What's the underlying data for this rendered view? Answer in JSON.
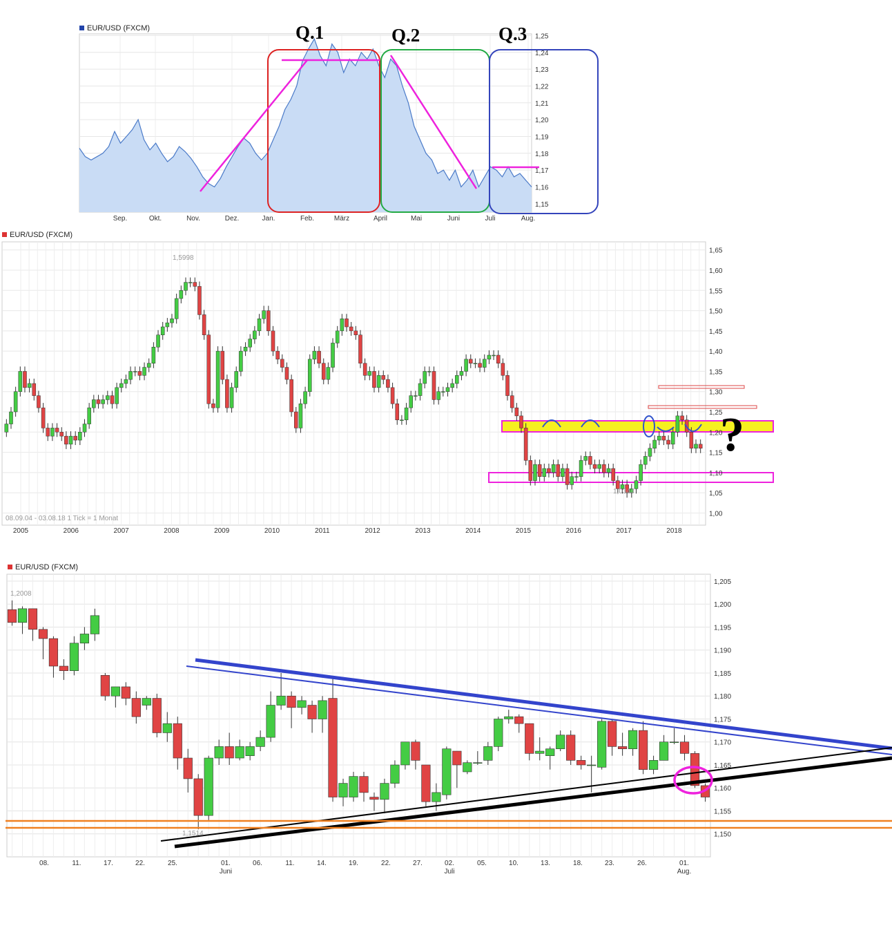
{
  "charts": {
    "top": {
      "legend": "EUR/USD (FXCM)",
      "legend_color": "#2244aa"
    },
    "middle": {
      "legend": "EUR/USD (FXCM)",
      "legend_color": "#dd3333",
      "footer": "08.09.04 - 03.08.18   1 Tick = 1 Monat",
      "high_label": "1,5998",
      "low_label": "1,0344"
    },
    "bottom": {
      "legend": "EUR/USD (FXCM)",
      "legend_color": "#dd3333",
      "high_label": "1,2008",
      "low_label": "1,1514"
    }
  },
  "annotations": {
    "q1": "Q.1",
    "q2": "Q.2",
    "q3": "Q.3",
    "question": "?"
  },
  "colors": {
    "up": "#44cc44",
    "down": "#e04444",
    "area_line": "#4a7ac8",
    "area_fill": "#c9dcf5",
    "magenta": "#ee22dd",
    "q1_box": "#dd2222",
    "q2_box": "#22aa44",
    "q3_box": "#3344bb",
    "support_yellow": "#f6f020",
    "trend_blue": "#3344cc",
    "trend_black": "#000000",
    "orange": "#f08020"
  },
  "chart_data": [
    {
      "type": "area",
      "title": "EUR/USD (FXCM)",
      "x_ticks": [
        "Sep.",
        "Okt.",
        "Nov.",
        "Dez.",
        "Jan.",
        "Feb.",
        "März",
        "April",
        "Mai",
        "Juni",
        "Juli",
        "Aug."
      ],
      "y_ticks": [
        "1,15",
        "1,16",
        "1,17",
        "1,18",
        "1,19",
        "1,20",
        "1,21",
        "1,22",
        "1,23",
        "1,24",
        "1,25"
      ],
      "ylim": [
        1.145,
        1.251
      ],
      "series": [
        {
          "values": [
            1.183,
            1.178,
            1.176,
            1.178,
            1.18,
            1.184,
            1.193,
            1.186,
            1.19,
            1.194,
            1.2,
            1.188,
            1.182,
            1.186,
            1.18,
            1.175,
            1.178,
            1.184,
            1.181,
            1.177,
            1.172,
            1.166,
            1.162,
            1.16,
            1.165,
            1.172,
            1.178,
            1.184,
            1.189,
            1.186,
            1.18,
            1.176,
            1.18,
            1.188,
            1.196,
            1.206,
            1.212,
            1.22,
            1.235,
            1.242,
            1.248,
            1.238,
            1.232,
            1.245,
            1.24,
            1.228,
            1.236,
            1.232,
            1.24,
            1.236,
            1.242,
            1.232,
            1.225,
            1.236,
            1.232,
            1.22,
            1.21,
            1.196,
            1.188,
            1.18,
            1.176,
            1.168,
            1.17,
            1.164,
            1.17,
            1.16,
            1.164,
            1.17,
            1.16,
            1.166,
            1.172,
            1.17,
            1.166,
            1.172,
            1.166,
            1.168,
            1.164,
            1.16
          ]
        }
      ]
    },
    {
      "type": "candlestick",
      "title": "EUR/USD (FXCM)",
      "x_ticks": [
        "2005",
        "2006",
        "2007",
        "2008",
        "2009",
        "2010",
        "2011",
        "2012",
        "2013",
        "2014",
        "2015",
        "2016",
        "2017",
        "2018"
      ],
      "y_ticks": [
        "1,00",
        "1,05",
        "1,10",
        "1,15",
        "1,20",
        "1,25",
        "1,30",
        "1,35",
        "1,40",
        "1,45",
        "1,50",
        "1,55",
        "1,60",
        "1,65"
      ],
      "ylim": [
        0.97,
        1.67
      ],
      "period": "1 Tick = 1 Monat",
      "annotated_high": 1.5998,
      "annotated_low": 1.0344,
      "close": [
        1.22,
        1.25,
        1.3,
        1.35,
        1.31,
        1.32,
        1.29,
        1.26,
        1.21,
        1.19,
        1.21,
        1.2,
        1.19,
        1.17,
        1.19,
        1.18,
        1.2,
        1.22,
        1.26,
        1.28,
        1.27,
        1.28,
        1.29,
        1.27,
        1.31,
        1.32,
        1.33,
        1.35,
        1.35,
        1.34,
        1.36,
        1.37,
        1.41,
        1.44,
        1.46,
        1.47,
        1.48,
        1.53,
        1.55,
        1.57,
        1.57,
        1.56,
        1.49,
        1.44,
        1.27,
        1.26,
        1.4,
        1.33,
        1.26,
        1.31,
        1.35,
        1.4,
        1.41,
        1.43,
        1.45,
        1.48,
        1.5,
        1.45,
        1.4,
        1.38,
        1.36,
        1.33,
        1.25,
        1.21,
        1.27,
        1.3,
        1.38,
        1.4,
        1.37,
        1.33,
        1.36,
        1.42,
        1.45,
        1.48,
        1.46,
        1.45,
        1.44,
        1.37,
        1.34,
        1.35,
        1.31,
        1.34,
        1.33,
        1.31,
        1.27,
        1.23,
        1.23,
        1.26,
        1.29,
        1.29,
        1.32,
        1.35,
        1.35,
        1.28,
        1.3,
        1.3,
        1.31,
        1.32,
        1.34,
        1.35,
        1.38,
        1.37,
        1.37,
        1.36,
        1.38,
        1.39,
        1.39,
        1.37,
        1.34,
        1.29,
        1.26,
        1.24,
        1.21,
        1.13,
        1.08,
        1.12,
        1.09,
        1.11,
        1.1,
        1.12,
        1.09,
        1.11,
        1.07,
        1.09,
        1.09,
        1.13,
        1.14,
        1.12,
        1.11,
        1.12,
        1.1,
        1.11,
        1.08,
        1.06,
        1.07,
        1.05,
        1.06,
        1.08,
        1.12,
        1.14,
        1.16,
        1.18,
        1.19,
        1.18,
        1.17,
        1.2,
        1.24,
        1.23,
        1.2,
        1.16,
        1.17,
        1.16
      ]
    },
    {
      "type": "candlestick",
      "title": "EUR/USD (FXCM)",
      "x_ticks": [
        "08.",
        "11.",
        "17.",
        "22.",
        "25.",
        "01.",
        "06.",
        "11.",
        "14.",
        "19.",
        "22.",
        "27.",
        "02.",
        "05.",
        "10.",
        "13.",
        "18.",
        "23.",
        "26.",
        "01."
      ],
      "x_month_labels": [
        "Juni",
        "Juli",
        "Aug."
      ],
      "y_ticks": [
        "1,150",
        "1,155",
        "1,160",
        "1,165",
        "1,170",
        "1,175",
        "1,180",
        "1,185",
        "1,190",
        "1,195",
        "1,200",
        "1,205"
      ],
      "ylim": [
        1.145,
        1.2065
      ],
      "annotated_high": 1.2008,
      "annotated_low": 1.1514,
      "candles": [
        [
          1.1988,
          1.2008,
          1.1953,
          1.196
        ],
        [
          1.196,
          1.1995,
          1.1935,
          1.199
        ],
        [
          1.199,
          1.199,
          1.192,
          1.1945
        ],
        [
          1.1945,
          1.195,
          1.188,
          1.1925
        ],
        [
          1.1925,
          1.193,
          1.184,
          1.1865
        ],
        [
          1.1865,
          1.188,
          1.1835,
          1.1855
        ],
        [
          1.1855,
          1.193,
          1.1845,
          1.1915
        ],
        [
          1.1915,
          1.195,
          1.19,
          1.1935
        ],
        [
          1.1935,
          1.199,
          1.192,
          1.1975
        ],
        [
          1.1845,
          1.185,
          1.179,
          1.18
        ],
        [
          1.18,
          1.1815,
          1.1775,
          1.182
        ],
        [
          1.182,
          1.183,
          1.178,
          1.1795
        ],
        [
          1.1795,
          1.181,
          1.174,
          1.1755
        ],
        [
          1.178,
          1.18,
          1.177,
          1.1795
        ],
        [
          1.1795,
          1.1805,
          1.171,
          1.172
        ],
        [
          1.172,
          1.1765,
          1.17,
          1.174
        ],
        [
          1.174,
          1.1755,
          1.164,
          1.1665
        ],
        [
          1.1665,
          1.1685,
          1.159,
          1.162
        ],
        [
          1.162,
          1.163,
          1.151,
          1.154
        ],
        [
          1.154,
          1.167,
          1.153,
          1.1665
        ],
        [
          1.1665,
          1.1705,
          1.165,
          1.169
        ],
        [
          1.169,
          1.172,
          1.165,
          1.1665
        ],
        [
          1.1665,
          1.1705,
          1.166,
          1.169
        ],
        [
          1.167,
          1.17,
          1.166,
          1.169
        ],
        [
          1.169,
          1.1725,
          1.168,
          1.171
        ],
        [
          1.171,
          1.181,
          1.17,
          1.178
        ],
        [
          1.178,
          1.185,
          1.177,
          1.18
        ],
        [
          1.18,
          1.181,
          1.173,
          1.1775
        ],
        [
          1.1775,
          1.18,
          1.176,
          1.179
        ],
        [
          1.178,
          1.179,
          1.172,
          1.175
        ],
        [
          1.175,
          1.18,
          1.172,
          1.179
        ],
        [
          1.1795,
          1.184,
          1.157,
          1.158
        ],
        [
          1.158,
          1.162,
          1.156,
          1.161
        ],
        [
          1.158,
          1.1635,
          1.157,
          1.1625
        ],
        [
          1.1625,
          1.1635,
          1.157,
          1.159
        ],
        [
          1.158,
          1.159,
          1.155,
          1.1575
        ],
        [
          1.1575,
          1.162,
          1.1545,
          1.161
        ],
        [
          1.161,
          1.166,
          1.16,
          1.165
        ],
        [
          1.165,
          1.17,
          1.164,
          1.17
        ],
        [
          1.17,
          1.1705,
          1.164,
          1.166
        ],
        [
          1.165,
          1.165,
          1.156,
          1.157
        ],
        [
          1.157,
          1.161,
          1.155,
          1.159
        ],
        [
          1.1585,
          1.169,
          1.1575,
          1.1685
        ],
        [
          1.168,
          1.168,
          1.16,
          1.165
        ],
        [
          1.1635,
          1.166,
          1.163,
          1.1655
        ],
        [
          1.1655,
          1.168,
          1.165,
          1.1655
        ],
        [
          1.166,
          1.17,
          1.165,
          1.169
        ],
        [
          1.169,
          1.1755,
          1.168,
          1.175
        ],
        [
          1.175,
          1.177,
          1.174,
          1.1755
        ],
        [
          1.1755,
          1.176,
          1.172,
          1.174
        ],
        [
          1.174,
          1.174,
          1.166,
          1.1675
        ],
        [
          1.1675,
          1.171,
          1.166,
          1.168
        ],
        [
          1.167,
          1.169,
          1.164,
          1.1685
        ],
        [
          1.1685,
          1.1725,
          1.168,
          1.1715
        ],
        [
          1.1715,
          1.1725,
          1.165,
          1.166
        ],
        [
          1.166,
          1.167,
          1.164,
          1.165
        ],
        [
          1.165,
          1.167,
          1.159,
          1.165
        ],
        [
          1.1645,
          1.175,
          1.164,
          1.1745
        ],
        [
          1.1745,
          1.175,
          1.167,
          1.169
        ],
        [
          1.169,
          1.172,
          1.167,
          1.1685
        ],
        [
          1.1685,
          1.173,
          1.167,
          1.1725
        ],
        [
          1.1725,
          1.1745,
          1.163,
          1.164
        ],
        [
          1.164,
          1.167,
          1.163,
          1.166
        ],
        [
          1.166,
          1.1715,
          1.166,
          1.17
        ],
        [
          1.17,
          1.173,
          1.1695,
          1.17
        ],
        [
          1.17,
          1.1715,
          1.166,
          1.1675
        ],
        [
          1.1675,
          1.168,
          1.16,
          1.1605
        ],
        [
          1.1605,
          1.161,
          1.157,
          1.158
        ]
      ]
    }
  ]
}
